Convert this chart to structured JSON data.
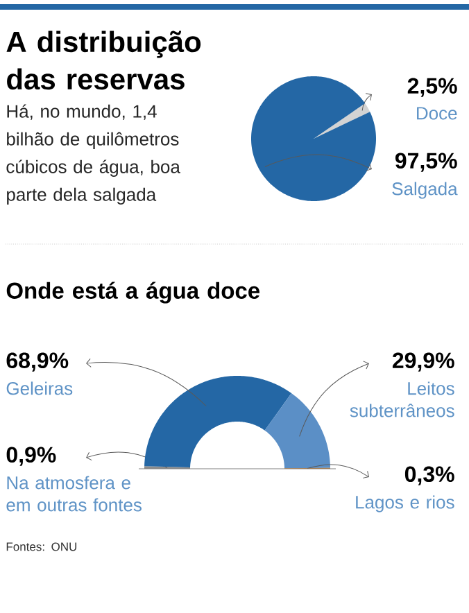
{
  "chart_data": [
    {
      "type": "pie",
      "title": "A distribuição das reservas",
      "subtitle": "Há, no mundo, 1,4 bilhão de quilômetros cúbicos de água, boa parte dela salgada",
      "categories": [
        "Doce",
        "Salgada"
      ],
      "values": [
        2.5,
        97.5
      ],
      "colors": [
        "#d3d3d3",
        "#2467a5"
      ],
      "value_labels": [
        "2,5%",
        "97,5%"
      ]
    },
    {
      "type": "donut",
      "title": "Onde está a água doce",
      "categories": [
        "Na atmosfera e em outras fontes",
        "Geleiras",
        "Leitos subterrâneos",
        "Lagos e rios"
      ],
      "values": [
        0.9,
        68.9,
        29.9,
        0.3
      ],
      "colors": [
        "#8c8c8c",
        "#2467a5",
        "#5b8fc6",
        "#c8761e"
      ],
      "value_labels": [
        "0,9%",
        "68,9%",
        "29,9%",
        "0,3%"
      ],
      "annotations": [
        "Fontes: ONU"
      ]
    }
  ]
}
